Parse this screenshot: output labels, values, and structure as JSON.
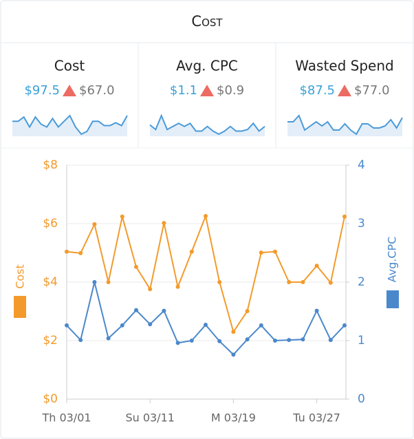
{
  "title": "Cost",
  "kpis": [
    {
      "label": "Cost",
      "value": "$97.5",
      "previous": "$67.0",
      "sparkline": [
        22,
        22,
        28,
        14,
        28,
        18,
        14,
        26,
        14,
        22,
        30,
        14,
        4,
        8,
        22,
        22,
        16,
        16,
        20,
        16,
        30
      ]
    },
    {
      "label": "Avg. CPC",
      "value": "$1.1",
      "previous": "$0.9",
      "sparkline": [
        16,
        10,
        28,
        10,
        14,
        18,
        14,
        18,
        8,
        8,
        14,
        8,
        4,
        8,
        14,
        8,
        8,
        10,
        18,
        8,
        14
      ]
    },
    {
      "label": "Wasted Spend",
      "value": "$87.5",
      "previous": "$77.0",
      "sparkline": [
        18,
        18,
        24,
        10,
        14,
        18,
        14,
        18,
        10,
        10,
        16,
        10,
        6,
        16,
        16,
        12,
        12,
        14,
        20,
        12,
        22
      ]
    }
  ],
  "chart_data": {
    "type": "line",
    "categories": [
      "Th 03/01",
      null,
      null,
      null,
      null,
      null,
      "Su 03/11",
      null,
      null,
      null,
      null,
      null,
      "M 03/19",
      null,
      null,
      null,
      null,
      null,
      "Tu 03/27",
      null,
      null
    ],
    "ylim": [
      0,
      8
    ],
    "yticks": [
      {
        "value": 0,
        "label": "$0"
      },
      {
        "value": 2,
        "label": "$2"
      },
      {
        "value": 4,
        "label": "$4"
      },
      {
        "value": 6,
        "label": "$6"
      },
      {
        "value": 8,
        "label": "$8"
      }
    ],
    "y2lim": [
      0,
      4
    ],
    "y2ticks": [
      0,
      1,
      2,
      3,
      4
    ],
    "grid": true,
    "series": [
      {
        "name": "Cost",
        "color": "#f39a2b",
        "values": [
          5.04,
          4.99,
          5.98,
          4.0,
          6.24,
          4.52,
          3.76,
          6.02,
          3.84,
          5.04,
          6.26,
          4.0,
          2.3,
          3.01,
          5.01,
          5.04,
          4.0,
          4.0,
          4.56,
          3.98,
          6.24
        ]
      },
      {
        "name": "Avg.CPC",
        "color": "#4a88cc",
        "axis": "y2",
        "values": [
          1.26,
          1.01,
          2.0,
          1.04,
          1.26,
          1.52,
          1.28,
          1.51,
          0.96,
          1.0,
          1.27,
          0.99,
          0.76,
          1.02,
          1.26,
          1.0,
          1.01,
          1.02,
          1.51,
          1.01,
          1.26
        ]
      }
    ]
  }
}
